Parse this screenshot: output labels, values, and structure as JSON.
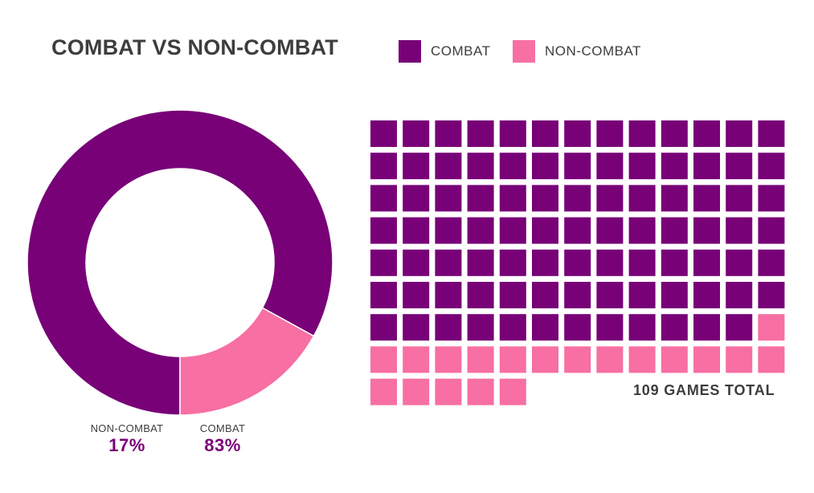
{
  "colors": {
    "combat": "#780177",
    "noncombat": "#f76fa3",
    "text": "#3d3d3d"
  },
  "legend": {
    "combat_label": "COMBAT",
    "noncombat_label": "NON-COMBAT"
  },
  "chart_data": [
    {
      "type": "pie",
      "title": "COMBAT VS NON-COMBAT",
      "categories": [
        "COMBAT",
        "NON-COMBAT"
      ],
      "values": [
        83,
        17
      ],
      "value_labels": [
        "83%",
        "17%"
      ],
      "donut": true
    },
    {
      "type": "waffle",
      "categories": [
        "COMBAT",
        "NON-COMBAT"
      ],
      "counts": [
        90,
        19
      ],
      "columns": 13,
      "annotation": "109 GAMES TOTAL"
    }
  ]
}
